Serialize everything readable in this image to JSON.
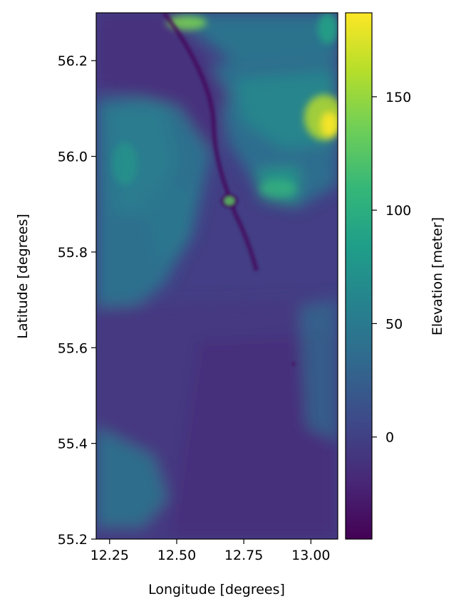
{
  "chart_data": {
    "type": "heatmap",
    "title": "",
    "xlabel": "Longitude [degrees]",
    "ylabel": "Latitude [degrees]",
    "xlim": [
      12.2,
      13.1
    ],
    "ylim": [
      55.2,
      56.3
    ],
    "x_ticks": [
      12.25,
      12.5,
      12.75,
      13.0
    ],
    "x_tick_labels": [
      "12.25",
      "12.50",
      "12.75",
      "13.00"
    ],
    "y_ticks": [
      55.2,
      55.4,
      55.6,
      55.8,
      56.0,
      56.2
    ],
    "y_tick_labels": [
      "55.2",
      "55.4",
      "55.6",
      "55.8",
      "56.0",
      "56.2"
    ],
    "grid": false,
    "colormap": "viridis",
    "colorbar": {
      "label": "Elevation [meter]",
      "range": [
        -45,
        187
      ],
      "ticks": [
        0,
        50,
        100,
        150
      ],
      "tick_labels": [
        "0",
        "50",
        "100",
        "150"
      ]
    },
    "features": [
      {
        "kind": "high",
        "lon": 13.07,
        "lat": 56.08,
        "elevation": 180
      },
      {
        "kind": "high",
        "lon": 12.42,
        "lat": 56.26,
        "elevation": 160
      },
      {
        "kind": "high",
        "lon": 13.08,
        "lat": 56.27,
        "elevation": 120
      },
      {
        "kind": "plateau",
        "lon": 12.78,
        "lat": 56.1,
        "elevation": 80
      },
      {
        "kind": "plateau",
        "lon": 12.9,
        "lat": 56.0,
        "elevation": 90
      },
      {
        "kind": "upland",
        "lon": 12.3,
        "lat": 55.9,
        "elevation": 60
      },
      {
        "kind": "upland",
        "lon": 12.35,
        "lat": 56.05,
        "elevation": 55
      },
      {
        "kind": "upland",
        "lon": 12.4,
        "lat": 55.8,
        "elevation": 50
      },
      {
        "kind": "upland",
        "lon": 12.28,
        "lat": 55.32,
        "elevation": 45
      },
      {
        "kind": "lake",
        "lon": 12.7,
        "lat": 55.91,
        "elevation": -20
      },
      {
        "kind": "sea",
        "lon": 12.8,
        "lat": 55.45,
        "elevation": -10
      },
      {
        "kind": "strait",
        "lon": 12.65,
        "lat": 56.05,
        "elevation": -35
      }
    ]
  }
}
